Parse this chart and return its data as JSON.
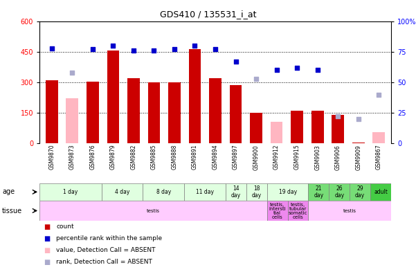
{
  "title": "GDS410 / 135531_i_at",
  "samples": [
    "GSM9870",
    "GSM9873",
    "GSM9876",
    "GSM9879",
    "GSM9882",
    "GSM9885",
    "GSM9888",
    "GSM9891",
    "GSM9894",
    "GSM9897",
    "GSM9900",
    "GSM9912",
    "GSM9915",
    "GSM9903",
    "GSM9906",
    "GSM9909",
    "GSM9867"
  ],
  "count_values": [
    310,
    null,
    305,
    455,
    320,
    300,
    300,
    465,
    320,
    285,
    150,
    null,
    160,
    160,
    140,
    5,
    null
  ],
  "count_absent": [
    null,
    220,
    null,
    null,
    null,
    null,
    null,
    null,
    null,
    null,
    null,
    105,
    null,
    null,
    null,
    null,
    55
  ],
  "percentile_values": [
    78,
    null,
    77,
    80,
    76,
    76,
    77,
    80,
    77,
    67,
    null,
    60,
    62,
    60,
    null,
    null,
    null
  ],
  "percentile_absent": [
    null,
    58,
    null,
    null,
    null,
    null,
    null,
    null,
    null,
    null,
    53,
    null,
    null,
    null,
    22,
    20,
    40
  ],
  "ylim_left": [
    0,
    600
  ],
  "ylim_right": [
    0,
    100
  ],
  "yticks_left": [
    0,
    150,
    300,
    450,
    600
  ],
  "yticks_right": [
    0,
    25,
    50,
    75,
    100
  ],
  "bar_color": "#cc0000",
  "bar_absent_color": "#ffb6c1",
  "dot_color": "#0000cc",
  "dot_absent_color": "#aaaacc",
  "age_groups": [
    {
      "label": "1 day",
      "start": 0,
      "end": 3,
      "color": "#e0ffe0"
    },
    {
      "label": "4 day",
      "start": 3,
      "end": 5,
      "color": "#e0ffe0"
    },
    {
      "label": "8 day",
      "start": 5,
      "end": 7,
      "color": "#e0ffe0"
    },
    {
      "label": "11 day",
      "start": 7,
      "end": 9,
      "color": "#e0ffe0"
    },
    {
      "label": "14\nday",
      "start": 9,
      "end": 10,
      "color": "#e0ffe0"
    },
    {
      "label": "18\nday",
      "start": 10,
      "end": 11,
      "color": "#e0ffe0"
    },
    {
      "label": "19 day",
      "start": 11,
      "end": 13,
      "color": "#e0ffe0"
    },
    {
      "label": "21\nday",
      "start": 13,
      "end": 14,
      "color": "#77dd77"
    },
    {
      "label": "26\nday",
      "start": 14,
      "end": 15,
      "color": "#77dd77"
    },
    {
      "label": "29\nday",
      "start": 15,
      "end": 16,
      "color": "#77dd77"
    },
    {
      "label": "adult",
      "start": 16,
      "end": 17,
      "color": "#44cc44"
    }
  ],
  "tissue_groups": [
    {
      "label": "testis",
      "start": 0,
      "end": 11,
      "color": "#ffccff"
    },
    {
      "label": "testis,\nintersti\ntial\ncells",
      "start": 11,
      "end": 12,
      "color": "#ee88ee"
    },
    {
      "label": "testis,\ntubular\nsomatic\ncells",
      "start": 12,
      "end": 13,
      "color": "#ee88ee"
    },
    {
      "label": "testis",
      "start": 13,
      "end": 17,
      "color": "#ffccff"
    }
  ],
  "legend_items": [
    {
      "label": "count",
      "color": "#cc0000"
    },
    {
      "label": "percentile rank within the sample",
      "color": "#0000cc"
    },
    {
      "label": "value, Detection Call = ABSENT",
      "color": "#ffb6c1"
    },
    {
      "label": "rank, Detection Call = ABSENT",
      "color": "#aaaacc"
    }
  ],
  "bg_color": "#ffffff",
  "xtick_bg": "#cccccc"
}
